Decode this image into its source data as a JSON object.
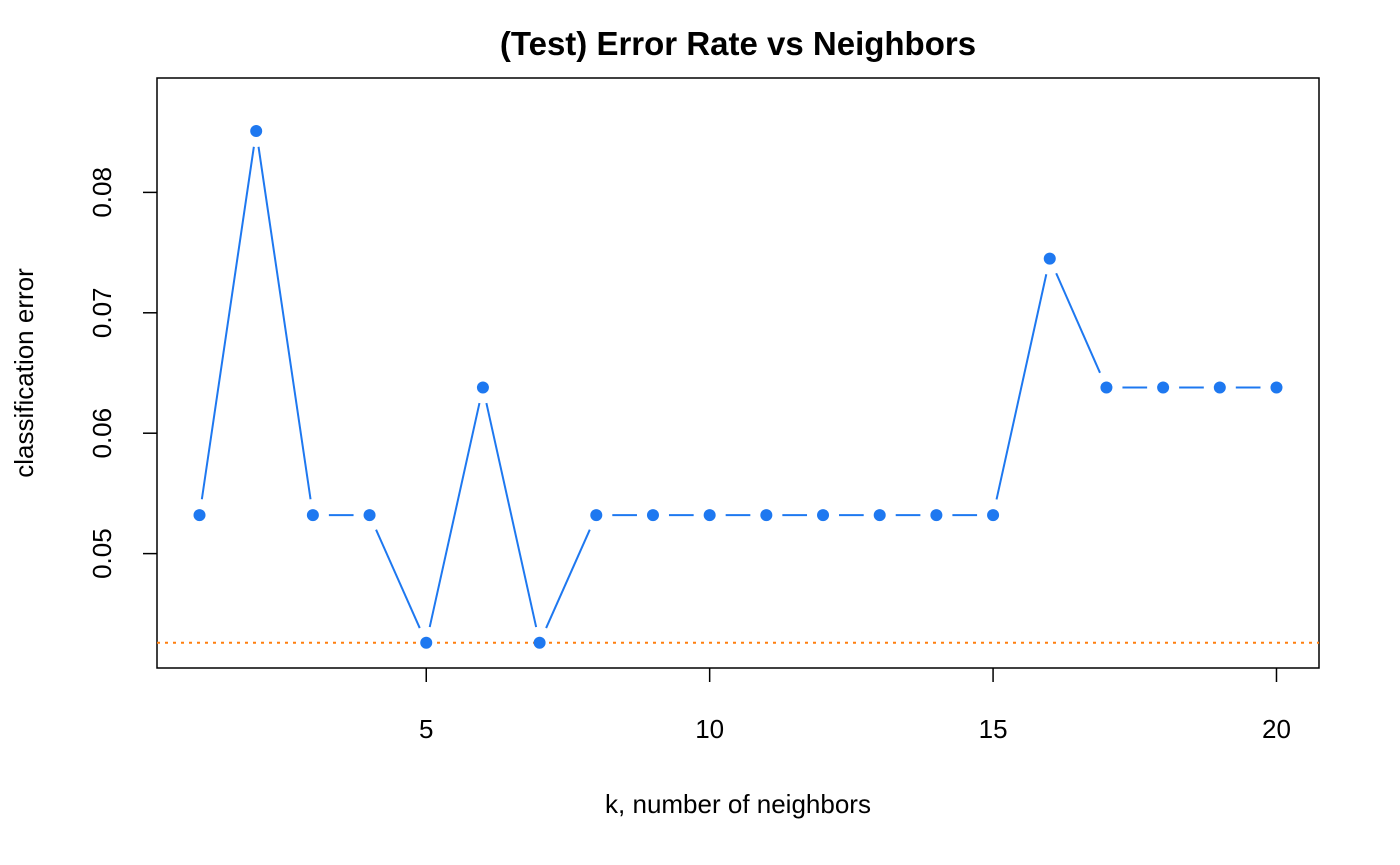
{
  "chart_data": {
    "type": "line",
    "title": "(Test) Error Rate vs Neighbors",
    "xlabel": "k, number of neighbors",
    "ylabel": "classification error",
    "xlim": [
      0.25,
      20.75
    ],
    "ylim": [
      0.0405,
      0.0895
    ],
    "xticks": [
      5,
      10,
      15,
      20
    ],
    "yticks": [
      0.05,
      0.06,
      0.07,
      0.08
    ],
    "grid": false,
    "series": [
      {
        "color": "#1e78f0",
        "x": [
          1,
          2,
          3,
          4,
          5,
          6,
          7,
          8,
          9,
          10,
          11,
          12,
          13,
          14,
          15,
          16,
          17,
          18,
          19,
          20
        ],
        "y": [
          0.0532,
          0.0851,
          0.0532,
          0.0532,
          0.0426,
          0.0638,
          0.0426,
          0.0532,
          0.0532,
          0.0532,
          0.0532,
          0.0532,
          0.0532,
          0.0532,
          0.0532,
          0.0745,
          0.0638,
          0.0638,
          0.0638,
          0.0638
        ]
      }
    ],
    "reference_line": {
      "y": 0.0426,
      "color": "#ff7f0e",
      "style": "dotted"
    }
  }
}
